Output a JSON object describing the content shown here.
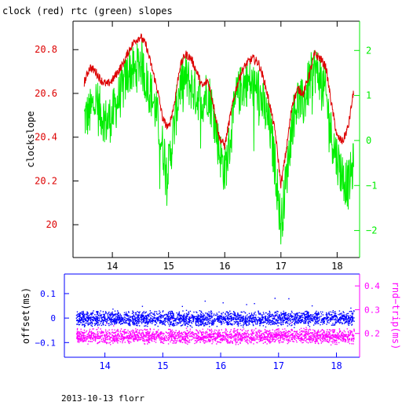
{
  "chart_data": [
    {
      "type": "line",
      "title": "clock (red) rtc (green) slopes",
      "ylabel": "clockslope",
      "xlim": [
        13.3,
        18.4
      ],
      "ylim_left": [
        19.85,
        20.93
      ],
      "ylim_right": [
        -2.6,
        2.65
      ],
      "x_ticks": [
        "14",
        "15",
        "16",
        "17",
        "18"
      ],
      "y_ticks_left": [
        "20",
        "20.2",
        "20.4",
        "20.6",
        "20.8"
      ],
      "y_ticks_right": [
        "−2",
        "−1",
        "0",
        "1",
        "2"
      ],
      "grid": false,
      "colors": {
        "clock": "#dd0000",
        "rtc": "#00ee00"
      },
      "series": [
        {
          "name": "clock",
          "axis": "left",
          "x": [
            13.5,
            13.6,
            13.7,
            13.8,
            13.9,
            14.0,
            14.1,
            14.2,
            14.3,
            14.4,
            14.5,
            14.6,
            14.7,
            14.8,
            14.9,
            15.0,
            15.1,
            15.2,
            15.3,
            15.4,
            15.5,
            15.6,
            15.7,
            15.8,
            15.9,
            16.0,
            16.1,
            16.2,
            16.3,
            16.4,
            16.5,
            16.6,
            16.7,
            16.8,
            16.9,
            17.0,
            17.1,
            17.2,
            17.3,
            17.4,
            17.5,
            17.6,
            17.7,
            17.8,
            17.9,
            18.0,
            18.1,
            18.2,
            18.3
          ],
          "y": [
            20.65,
            20.72,
            20.7,
            20.66,
            20.64,
            20.66,
            20.7,
            20.74,
            20.8,
            20.84,
            20.86,
            20.82,
            20.72,
            20.62,
            20.48,
            20.44,
            20.55,
            20.72,
            20.78,
            20.76,
            20.7,
            20.63,
            20.66,
            20.55,
            20.4,
            20.36,
            20.5,
            20.62,
            20.7,
            20.74,
            20.76,
            20.74,
            20.66,
            20.55,
            20.42,
            20.18,
            20.35,
            20.55,
            20.62,
            20.6,
            20.68,
            20.78,
            20.76,
            20.72,
            20.55,
            20.4,
            20.38,
            20.45,
            20.62
          ]
        },
        {
          "name": "rtc",
          "axis": "right",
          "x": [
            13.5,
            13.6,
            13.7,
            13.8,
            13.9,
            14.0,
            14.1,
            14.2,
            14.3,
            14.4,
            14.5,
            14.6,
            14.7,
            14.8,
            14.9,
            15.0,
            15.1,
            15.2,
            15.3,
            15.4,
            15.5,
            15.6,
            15.7,
            15.8,
            15.9,
            16.0,
            16.1,
            16.2,
            16.3,
            16.4,
            16.5,
            16.6,
            16.7,
            16.8,
            16.9,
            17.0,
            17.1,
            17.2,
            17.3,
            17.4,
            17.5,
            17.6,
            17.7,
            17.8,
            17.9,
            18.0,
            18.1,
            18.2,
            18.3
          ],
          "y": [
            0.5,
            0.6,
            0.9,
            0.6,
            0.4,
            0.55,
            0.9,
            1.2,
            1.6,
            1.5,
            1.8,
            1.3,
            1.0,
            0.5,
            -0.2,
            -0.6,
            0.3,
            1.2,
            1.4,
            1.2,
            1.0,
            0.9,
            1.1,
            0.6,
            -0.2,
            -0.7,
            0.0,
            0.9,
            1.2,
            1.3,
            1.2,
            1.1,
            0.7,
            0.3,
            -0.6,
            -1.9,
            -0.8,
            0.4,
            0.9,
            0.8,
            1.3,
            1.6,
            1.4,
            1.0,
            0.1,
            -0.4,
            -0.8,
            -1.0,
            -0.5
          ]
        }
      ]
    },
    {
      "type": "scatter",
      "ylabel_left": "offset(ms)",
      "ylabel_right": "rnd−trip(ms)",
      "xlim": [
        13.3,
        18.4
      ],
      "ylim_left": [
        -0.16,
        0.18
      ],
      "ylim_right": [
        0.1,
        0.45
      ],
      "x_ticks": [
        "14",
        "15",
        "16",
        "17",
        "18"
      ],
      "y_ticks_left": [
        "−0.1",
        "0",
        "0.1"
      ],
      "y_ticks_right": [
        "0.2",
        "0.3",
        "0.4"
      ],
      "colors": {
        "offset": "#0000ff",
        "rtt": "#ff00ff"
      },
      "series": [
        {
          "name": "offset",
          "axis": "left",
          "band_center": 0.0,
          "band_halfwidth": 0.025
        },
        {
          "name": "rtt",
          "axis": "right",
          "band_center": 0.19,
          "band_halfwidth": 0.025
        }
      ]
    }
  ],
  "footer": "2013-10-13 florr"
}
